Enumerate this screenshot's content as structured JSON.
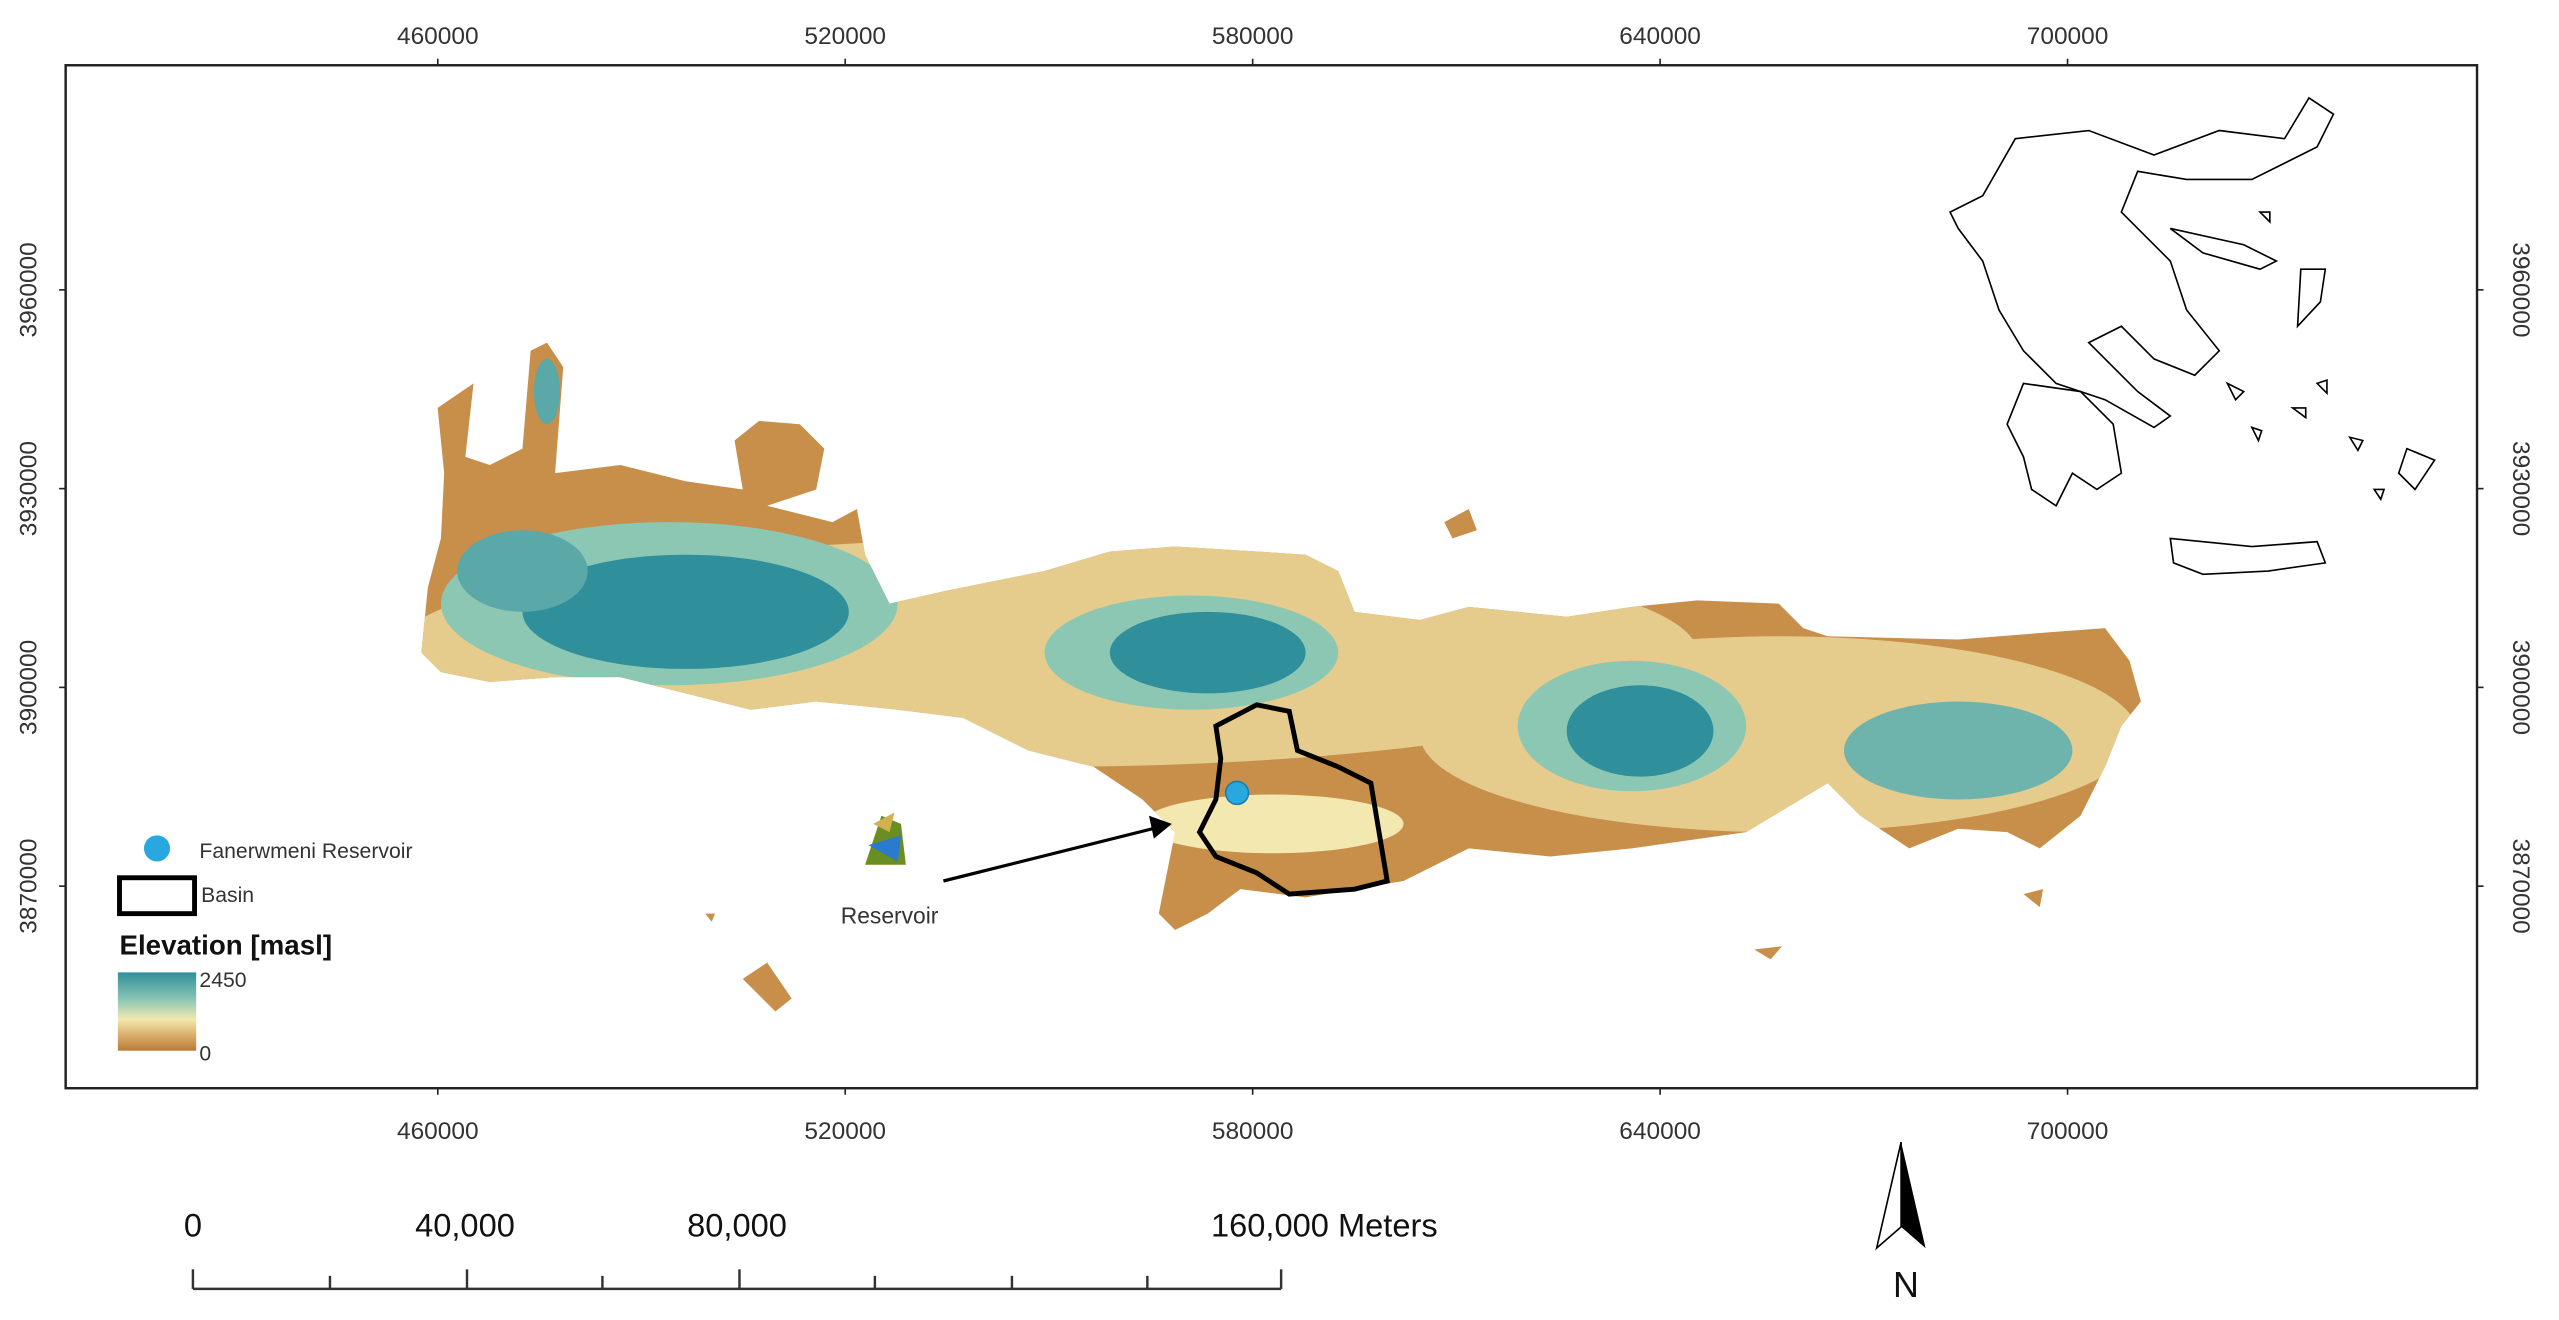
{
  "map": {
    "xlim": [
      405200,
      760300
    ],
    "ylim": [
      3839500,
      3993900
    ],
    "xticks": [
      460000,
      520000,
      580000,
      640000,
      700000
    ],
    "yticks": [
      3870000,
      3900000,
      3930000,
      3960000
    ]
  },
  "legend": {
    "reservoir": "Fanerwmeni Reservoir",
    "basin": "Basin",
    "elevation_title": "Elevation [masl]",
    "elevation_max": 2450,
    "elevation_min": 0
  },
  "annotation": "Reservoir",
  "scale_bar": {
    "range": [
      0,
      160000
    ],
    "ticks": [
      0,
      {
        "value": 40000,
        "label": "40,000"
      },
      {
        "value": 80000,
        "label": "80,000"
      },
      {
        "value": 160000,
        "label": "160,000 Meters"
      }
    ]
  },
  "north_arrow": "N"
}
